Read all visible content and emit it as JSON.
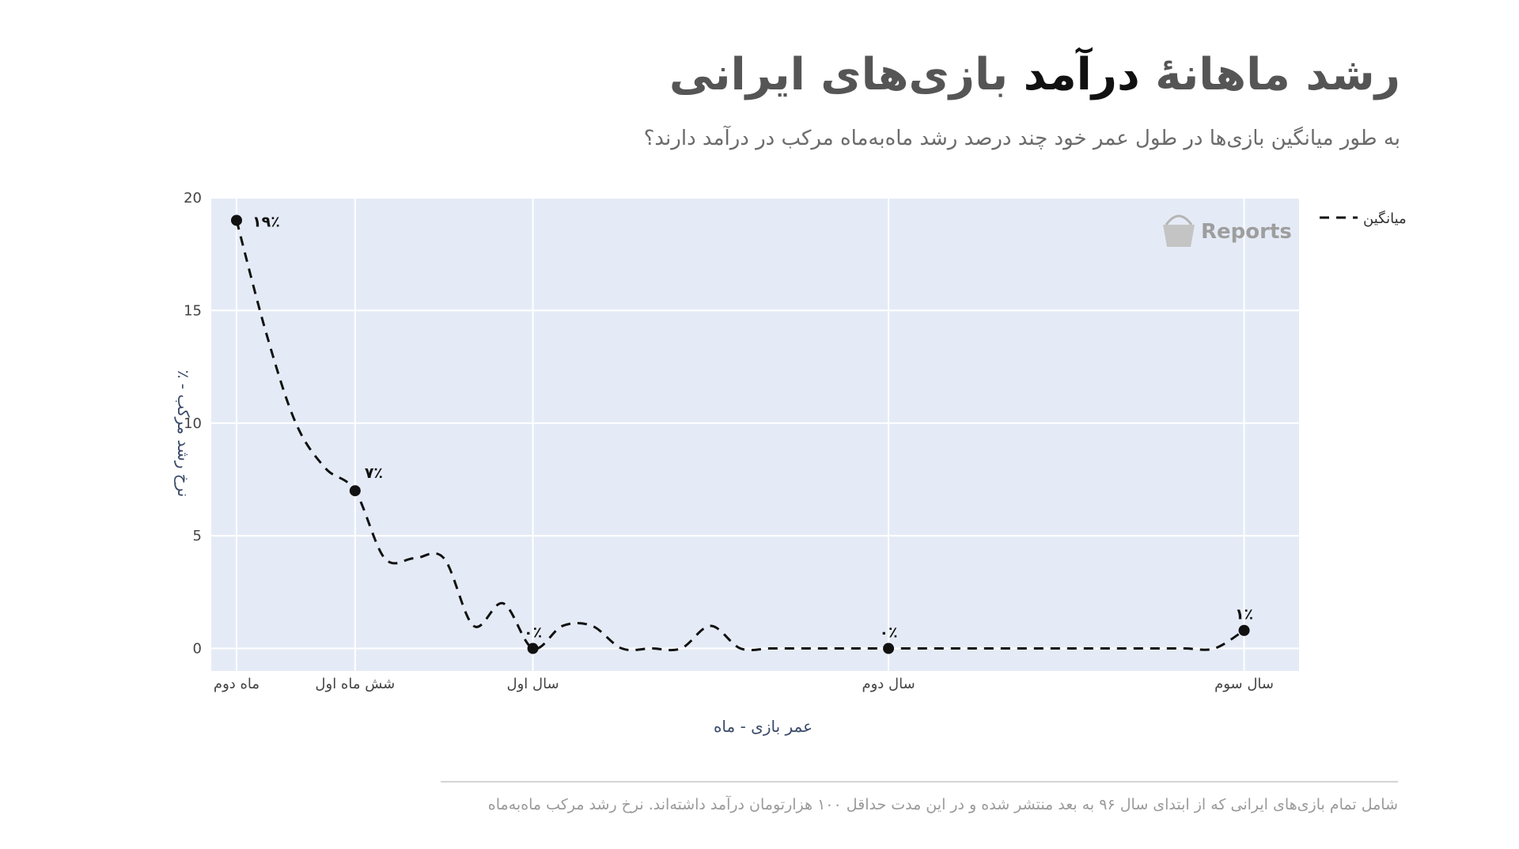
{
  "header": {
    "title_start": "رشد ماهانهٔ ",
    "title_highlight": "درآمد",
    "title_end": " بازی‌های ایرانی",
    "subtitle": "به طور میانگین بازی‌ها در طول عمر خود چند درصد رشد ماه‌به‌ماه مرکب در درآمد دارند؟"
  },
  "watermark": {
    "text": "Reports",
    "icon": "shopping-basket-icon"
  },
  "footnote": "شامل تمام بازی‌های ایرانی که از ابتدای سال ۹۶ به بعد منتشر شده و در این مدت حداقل ۱۰۰ هزارتومان درآمد داشته‌اند. نرخ رشد مرکب ماه‌به‌ماه",
  "colors": {
    "plot_bg": "#e5ebf6",
    "grid": "#ffffff",
    "line": "#111111",
    "axis_text": "#444444"
  },
  "chart_data": {
    "type": "line",
    "xlabel": "عمر بازی - ماه",
    "ylabel": "٪ - نرخ رشد مرکب",
    "xlim": [
      2,
      37
    ],
    "ylim": [
      -1,
      20
    ],
    "yticks": [
      0,
      5,
      10,
      15,
      20
    ],
    "xticks": [
      {
        "value": 2,
        "label": "ماه دوم"
      },
      {
        "value": 6,
        "label": "شش ماه اول"
      },
      {
        "value": 12,
        "label": "سال اول"
      },
      {
        "value": 24,
        "label": "سال دوم"
      },
      {
        "value": 36,
        "label": "سال سوم"
      }
    ],
    "grid": true,
    "legend": {
      "position": "top-right",
      "entries": [
        "میانگین"
      ]
    },
    "series": [
      {
        "name": "میانگین",
        "style": "dashed",
        "x": [
          2,
          3,
          4,
          5,
          6,
          7,
          8,
          9,
          10,
          11,
          12,
          13,
          14,
          15,
          16,
          17,
          18,
          19,
          20,
          21,
          22,
          23,
          24,
          25,
          26,
          27,
          28,
          29,
          30,
          31,
          32,
          33,
          34,
          35,
          36
        ],
        "y": [
          19,
          14,
          10,
          8,
          7,
          4,
          4,
          4,
          1,
          2,
          0,
          1,
          1,
          0,
          0,
          0,
          1,
          0,
          0,
          0,
          0,
          0,
          0,
          0,
          0,
          0,
          0,
          0,
          0,
          0,
          0,
          0,
          0,
          0,
          0.8
        ]
      }
    ],
    "markers": [
      {
        "x": 2,
        "y": 19,
        "label": "۱۹٪"
      },
      {
        "x": 6,
        "y": 7,
        "label": "۷٪"
      },
      {
        "x": 12,
        "y": 0,
        "label": "۰٪"
      },
      {
        "x": 24,
        "y": 0,
        "label": "۰٪"
      },
      {
        "x": 36,
        "y": 0.8,
        "label": "۱٪"
      }
    ]
  }
}
